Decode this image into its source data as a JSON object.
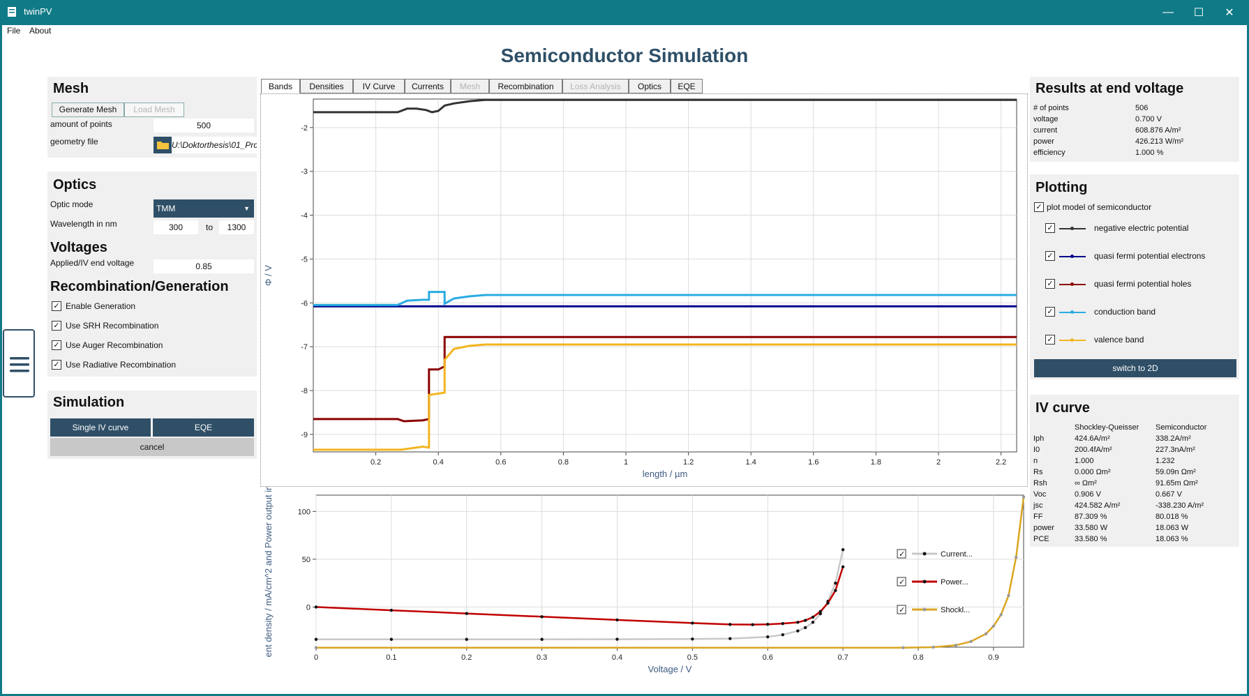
{
  "window": {
    "title": "twinPV",
    "menu": [
      "File",
      "About"
    ]
  },
  "page_title": "Semiconductor Simulation",
  "mesh": {
    "heading": "Mesh",
    "generate_label": "Generate Mesh",
    "load_label": "Load Mesh",
    "points_label": "amount of points",
    "points_value": "500",
    "geometry_label": "geometry file",
    "geometry_value": "U:\\Doktorthesis\\01_Prc"
  },
  "optics": {
    "heading": "Optics",
    "mode_label": "Optic mode",
    "mode_value": "TMM",
    "wavelength_label": "Wavelength in nm",
    "wl_from": "300",
    "wl_to_label": "to",
    "wl_to": "1300"
  },
  "voltages": {
    "heading": "Voltages",
    "end_voltage_label": "Applied/IV end voltage",
    "end_voltage_value": "0.85"
  },
  "recombination": {
    "heading": "Recombination/Generation",
    "options": [
      {
        "label": "Enable Generation",
        "checked": true
      },
      {
        "label": "Use SRH Recombination",
        "checked": true
      },
      {
        "label": "Use Auger Recombination",
        "checked": true
      },
      {
        "label": "Use Radiative Recombination",
        "checked": true
      }
    ]
  },
  "simulation": {
    "heading": "Simulation",
    "single_iv_label": "Single IV curve",
    "eqe_label": "EQE",
    "cancel_label": "cancel"
  },
  "tabs": [
    {
      "label": "Bands",
      "state": "selected"
    },
    {
      "label": "Densities",
      "state": "enabled"
    },
    {
      "label": "IV Curve",
      "state": "enabled"
    },
    {
      "label": "Currents",
      "state": "enabled"
    },
    {
      "label": "Mesh",
      "state": "disabled"
    },
    {
      "label": "Recombination",
      "state": "enabled"
    },
    {
      "label": "Loss Analysis",
      "state": "disabled"
    },
    {
      "label": "Optics",
      "state": "enabled"
    },
    {
      "label": "EQE",
      "state": "enabled"
    }
  ],
  "results": {
    "heading": "Results at end voltage",
    "rows": [
      {
        "label": "# of points",
        "value": "506"
      },
      {
        "label": "voltage",
        "value": "0.700 V"
      },
      {
        "label": "current",
        "value": "608.876 A/m²"
      },
      {
        "label": "power",
        "value": "426.213 W/m²"
      },
      {
        "label": "efficiency",
        "value": "1.000 %"
      }
    ]
  },
  "plotting": {
    "heading": "Plotting",
    "model_label": "plot model of semiconductor",
    "items": [
      {
        "label": "negative electric potential",
        "color": "#333333"
      },
      {
        "label": "quasi fermi potential electrons",
        "color": "#00008b"
      },
      {
        "label": "quasi fermi potential holes",
        "color": "#8b0000"
      },
      {
        "label": "conduction band",
        "color": "#29abe2"
      },
      {
        "label": "valence band",
        "color": "#f2b51f"
      }
    ],
    "switch_label": "switch to 2D"
  },
  "iv_curve": {
    "heading": "IV curve",
    "col1": "Shockley-Queisser",
    "col2": "Semiconductor",
    "rows": [
      {
        "label": "Iph",
        "sq": "424.6A/m²",
        "sc": "338.2A/m²"
      },
      {
        "label": "I0",
        "sq": "200.4fA/m²",
        "sc": "227.3nA/m²"
      },
      {
        "label": "n",
        "sq": "1.000",
        "sc": "1.232"
      },
      {
        "label": "Rs",
        "sq": "0.000 Ωm²",
        "sc": "59.09n Ωm²"
      },
      {
        "label": "Rsh",
        "sq": "∞ Ωm²",
        "sc": "91.65m Ωm²"
      },
      {
        "label": "Voc",
        "sq": "0.906 V",
        "sc": "0.667 V"
      },
      {
        "label": "jsc",
        "sq": "424.582 A/m²",
        "sc": "-338.230 A/m²"
      },
      {
        "label": "FF",
        "sq": "87.309 %",
        "sc": "80.018 %"
      },
      {
        "label": "power",
        "sq": "33.580 W",
        "sc": "18.063 W"
      },
      {
        "label": "PCE",
        "sq": "33.580 %",
        "sc": "18.063 %"
      }
    ]
  },
  "chart_data": [
    {
      "type": "line",
      "xlabel": "length  /  µm",
      "ylabel": "Φ  /  V",
      "xlim": [
        0,
        2.25
      ],
      "ylim": [
        -9.4,
        -1.35
      ],
      "xticks": [
        0.2,
        0.4,
        0.6,
        0.8,
        1,
        1.2,
        1.4,
        1.6,
        1.8,
        2,
        2.2
      ],
      "yticks": [
        -2,
        -3,
        -4,
        -5,
        -6,
        -7,
        -8,
        -9
      ],
      "grid": true,
      "series": [
        {
          "color": "#333333",
          "x": [
            0,
            0.27,
            0.3,
            0.33,
            0.36,
            0.38,
            0.4,
            0.42,
            0.45,
            0.5,
            0.55,
            2.25
          ],
          "y": [
            -1.65,
            -1.65,
            -1.57,
            -1.57,
            -1.6,
            -1.65,
            -1.62,
            -1.5,
            -1.45,
            -1.4,
            -1.37,
            -1.37
          ]
        },
        {
          "color": "#00008b",
          "x": [
            0,
            2.25
          ],
          "y": [
            -6.08,
            -6.08
          ]
        },
        {
          "color": "#29abe2",
          "x": [
            0,
            0.27,
            0.3,
            0.35,
            0.37,
            0.37,
            0.42,
            0.42,
            0.45,
            0.5,
            0.55,
            2.25
          ],
          "y": [
            -6.05,
            -6.05,
            -5.95,
            -5.93,
            -5.93,
            -5.75,
            -5.75,
            -6.02,
            -5.9,
            -5.85,
            -5.82,
            -5.82
          ]
        },
        {
          "color": "#8b0000",
          "x": [
            0,
            0.27,
            0.29,
            0.35,
            0.37,
            0.37,
            0.4,
            0.42,
            0.42,
            0.5,
            2.25
          ],
          "y": [
            -8.65,
            -8.65,
            -8.7,
            -8.68,
            -8.65,
            -7.52,
            -7.52,
            -7.45,
            -6.78,
            -6.78,
            -6.78
          ],
          "label": null
        },
        {
          "color": "#f2b51f",
          "x": [
            0,
            0.28,
            0.35,
            0.37,
            0.37,
            0.42,
            0.42,
            0.45,
            0.5,
            0.55,
            2.25
          ],
          "y": [
            -9.35,
            -9.35,
            -9.28,
            -9.3,
            -8.1,
            -8.05,
            -7.3,
            -7.05,
            -6.98,
            -6.95,
            -6.95
          ]
        }
      ]
    },
    {
      "type": "line",
      "xlabel": "Voltage / V",
      "ylabel": "ent density / mA/cm^2 and Power output in",
      "xlim": [
        0,
        0.94
      ],
      "ylim": [
        -42,
        117
      ],
      "xticks": [
        0,
        0.1,
        0.2,
        0.3,
        0.4,
        0.5,
        0.6,
        0.7,
        0.8,
        0.9
      ],
      "yticks": [
        100,
        50,
        0
      ],
      "grid": true,
      "legend_position": "right",
      "series": [
        {
          "name": "Current...",
          "color": "#c8c8c8",
          "x": [
            0,
            0.1,
            0.2,
            0.3,
            0.4,
            0.5,
            0.55,
            0.6,
            0.62,
            0.64,
            0.65,
            0.66,
            0.67,
            0.68,
            0.69,
            0.7
          ],
          "y": [
            -33.8,
            -33.8,
            -33.8,
            -33.8,
            -33.7,
            -33.5,
            -33.0,
            -31.2,
            -29.0,
            -25.0,
            -21.5,
            -16.0,
            -7.0,
            6.0,
            25.0,
            60.0
          ]
        },
        {
          "name": "Power...",
          "color": "#c00000",
          "x": [
            0,
            0.1,
            0.2,
            0.3,
            0.4,
            0.5,
            0.55,
            0.58,
            0.6,
            0.62,
            0.64,
            0.65,
            0.66,
            0.67,
            0.68,
            0.69,
            0.7
          ],
          "y": [
            0,
            -3.4,
            -6.8,
            -10.1,
            -13.5,
            -16.8,
            -18.2,
            -18.4,
            -18.1,
            -17.3,
            -16.0,
            -14.0,
            -10.6,
            -4.7,
            4.1,
            17.3,
            42.0
          ]
        },
        {
          "name": "Shockl...",
          "color": "#d9a520",
          "x": [
            0,
            0.78,
            0.82,
            0.85,
            0.87,
            0.89,
            0.9,
            0.91,
            0.92,
            0.93,
            0.94
          ],
          "y": [
            -42.5,
            -42.5,
            -42.0,
            -40.0,
            -36.0,
            -28.0,
            -20.0,
            -8.0,
            12.0,
            52.0,
            115.0
          ]
        }
      ]
    }
  ]
}
